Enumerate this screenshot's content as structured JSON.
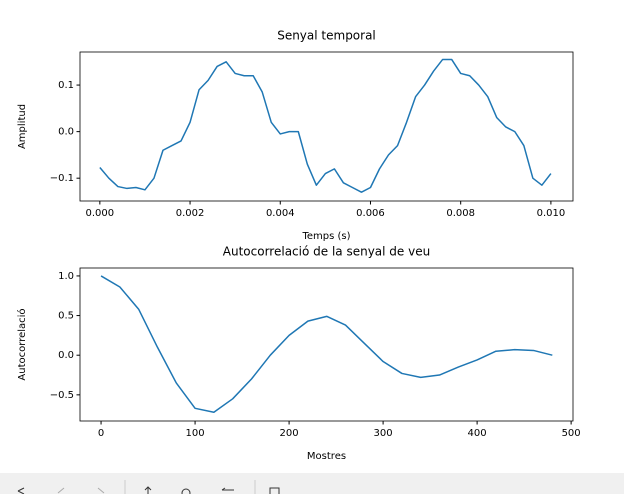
{
  "chart_data": [
    {
      "type": "line",
      "title": "Senyal temporal",
      "x_label": "Temps (s)",
      "y_label": "Amplitud",
      "x": [
        0,
        0.0002,
        0.0004,
        0.0006,
        0.0008,
        0.001,
        0.0012,
        0.0014,
        0.0016,
        0.0018,
        0.002,
        0.0022,
        0.0024,
        0.0026,
        0.0028,
        0.003,
        0.0032,
        0.0034,
        0.0036,
        0.0038,
        0.004,
        0.0042,
        0.0044,
        0.0046,
        0.0048,
        0.005,
        0.0052,
        0.0054,
        0.0056,
        0.0058,
        0.006,
        0.0062,
        0.0064,
        0.0066,
        0.0068,
        0.007,
        0.0072,
        0.0074,
        0.0076,
        0.0078,
        0.008,
        0.0082,
        0.0084,
        0.0086,
        0.0088,
        0.009,
        0.0092,
        0.0094,
        0.0096,
        0.0098,
        0.01
      ],
      "values": [
        -0.077,
        -0.1,
        -0.118,
        -0.122,
        -0.12,
        -0.125,
        -0.1,
        -0.04,
        -0.03,
        -0.02,
        0.02,
        0.09,
        0.11,
        0.14,
        0.15,
        0.125,
        0.12,
        0.12,
        0.085,
        0.02,
        -0.005,
        0.0,
        0.0,
        -0.07,
        -0.115,
        -0.09,
        -0.08,
        -0.11,
        -0.12,
        -0.13,
        -0.12,
        -0.08,
        -0.05,
        -0.03,
        0.02,
        0.075,
        0.1,
        0.13,
        0.155,
        0.155,
        0.125,
        0.12,
        0.1,
        0.075,
        0.03,
        0.01,
        0.0,
        -0.03,
        -0.1,
        -0.115,
        -0.09
      ],
      "color": "#1f77b4",
      "xlim": [
        -0.00044,
        0.01049
      ],
      "ylim": [
        -0.149,
        0.171
      ],
      "xticks": [
        {
          "value": 0,
          "label": "0.000"
        },
        {
          "value": 0.002,
          "label": "0.002"
        },
        {
          "value": 0.004,
          "label": "0.004"
        },
        {
          "value": 0.006,
          "label": "0.006"
        },
        {
          "value": 0.008,
          "label": "0.008"
        },
        {
          "value": 0.01,
          "label": "0.010"
        }
      ],
      "yticks": [
        {
          "value": -0.1,
          "label": "−0.1"
        },
        {
          "value": 0,
          "label": "0.0"
        },
        0.1
      ]
    },
    {
      "type": "line",
      "title": "Autocorrelació de la senyal de veu",
      "x_label": "Mostres",
      "y_label": "Autocorrelació",
      "x": [
        0,
        20,
        40,
        60,
        80,
        100,
        120,
        140,
        160,
        180,
        200,
        220,
        240,
        260,
        280,
        300,
        320,
        340,
        360,
        380,
        400,
        420,
        440,
        460,
        480
      ],
      "values": [
        1.0,
        0.86,
        0.58,
        0.1,
        -0.35,
        -0.67,
        -0.72,
        -0.55,
        -0.3,
        0.0,
        0.25,
        0.43,
        0.49,
        0.38,
        0.15,
        -0.08,
        -0.23,
        -0.28,
        -0.25,
        -0.15,
        -0.06,
        0.05,
        0.07,
        0.06,
        0.0
      ],
      "color": "#1f77b4",
      "xlim": [
        -22.4,
        502
      ],
      "ylim": [
        -0.83,
        1.1
      ],
      "xticks": [
        0,
        100,
        200,
        300,
        400,
        500
      ],
      "yticks": [
        {
          "value": -0.5,
          "label": "−0.5"
        },
        {
          "value": 0,
          "label": "0.0"
        },
        {
          "value": 0.5,
          "label": "0.5"
        },
        {
          "value": 1,
          "label": "1.0"
        }
      ]
    }
  ]
}
